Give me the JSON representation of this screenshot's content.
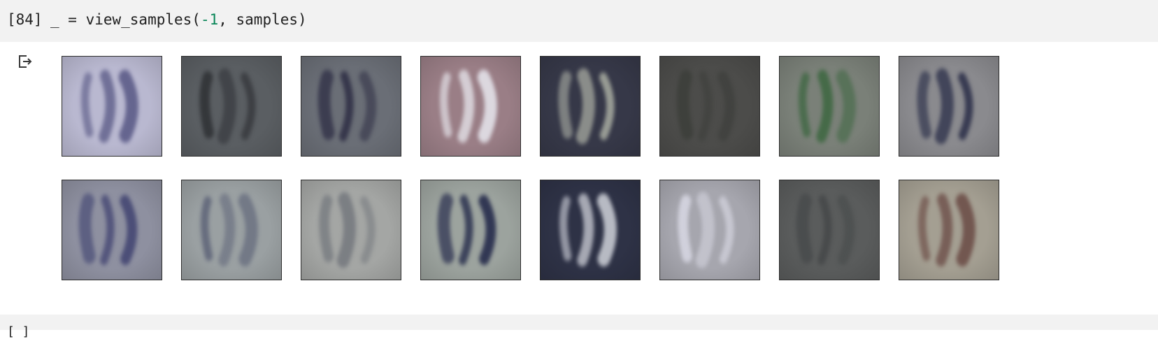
{
  "cell": {
    "exec_count": "[84]",
    "code_prefix": "_ = view_samples(",
    "code_arg": "-1",
    "code_suffix": ", samples)"
  },
  "output": {
    "icon": "output-redirect-icon",
    "samples": [
      {
        "bg": "#b9b8d0",
        "ink": "#4a4a7a"
      },
      {
        "bg": "#5a5e62",
        "ink": "#2e3034"
      },
      {
        "bg": "#6a6e76",
        "ink": "#2e2e44"
      },
      {
        "bg": "#9a7e86",
        "ink": "#e8e8ee"
      },
      {
        "bg": "#363848",
        "ink": "#b8bcae"
      },
      {
        "bg": "#4c4c4a",
        "ink": "#3c3e3a"
      },
      {
        "bg": "#7a8078",
        "ink": "#3c6640"
      },
      {
        "bg": "#8a8a8e",
        "ink": "#2a2e48"
      },
      {
        "bg": "#8e90a0",
        "ink": "#35386a"
      },
      {
        "bg": "#9aa0a2",
        "ink": "#5e6478"
      },
      {
        "bg": "#a4a6a4",
        "ink": "#74787e"
      },
      {
        "bg": "#9ca39e",
        "ink": "#1e2446"
      },
      {
        "bg": "#2e3246",
        "ink": "#e6e8ee"
      },
      {
        "bg": "#a6a6ae",
        "ink": "#d8d8e4"
      },
      {
        "bg": "#5a5c5c",
        "ink": "#454849"
      },
      {
        "bg": "#a49f92",
        "ink": "#6a4a44"
      }
    ]
  },
  "next_cell": {
    "exec_count": "[ ]"
  }
}
